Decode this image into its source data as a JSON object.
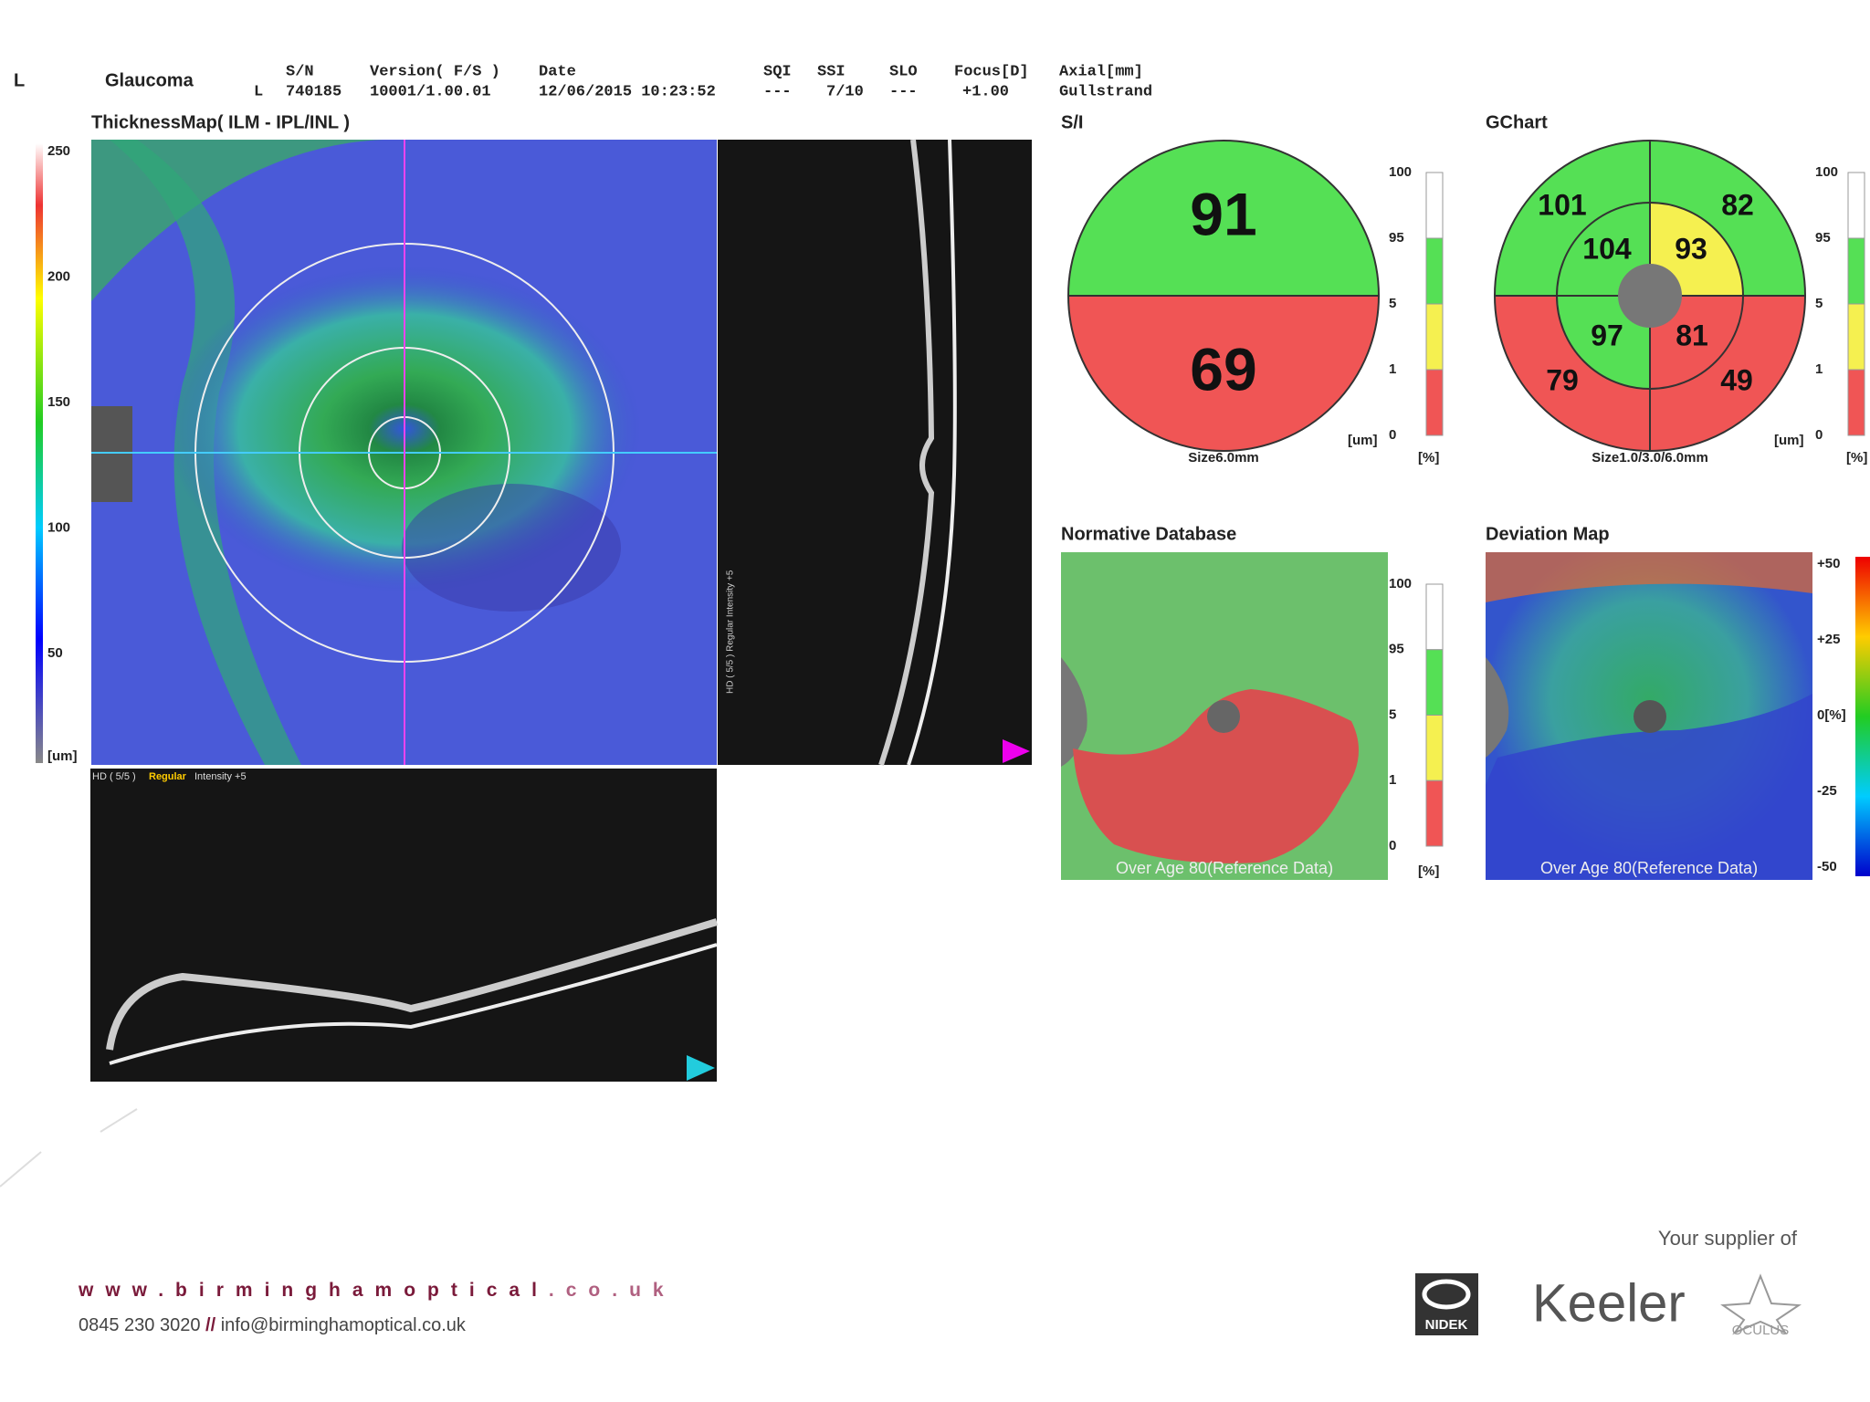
{
  "header": {
    "eye": "L",
    "mode": "Glaucoma",
    "row_eye": "L",
    "columns": [
      {
        "label": "S/N",
        "value": "740185"
      },
      {
        "label": "Version( F/S )",
        "value": "10001/1.00.01"
      },
      {
        "label": "Date",
        "value": "12/06/2015 10:23:52"
      },
      {
        "label": "SQI",
        "value": "---"
      },
      {
        "label": "SSI",
        "value": "7/10"
      },
      {
        "label": "SLO",
        "value": "---"
      },
      {
        "label": "Focus[D]",
        "value": "+1.00"
      },
      {
        "label": "Axial[mm]",
        "value": "Gullstrand"
      }
    ]
  },
  "thickness_map": {
    "title": "ThicknessMap( ILM - IPL/INL )",
    "scale": [
      "250",
      "200",
      "150",
      "100",
      "50"
    ],
    "unit": "[um]"
  },
  "bscan_vertical": {
    "label": "HD ( 5/5 ) Regular Intensity +5"
  },
  "bscan_horizontal": {
    "mode": "HD ( 5/5 )",
    "protocol": "Regular",
    "intensity": "Intensity +5"
  },
  "si": {
    "title": "S/I",
    "superior": 91,
    "inferior": 69,
    "size": "Size6.0mm",
    "unit": "[um]",
    "scale": [
      "100",
      "95",
      "5",
      "1",
      "0"
    ],
    "scale_unit": "[%]"
  },
  "gchart": {
    "title": "GChart",
    "outer_superior_temporal": 101,
    "outer_superior_nasal": 82,
    "inner_superior_temporal": 104,
    "inner_superior_nasal": 93,
    "inner_inferior_temporal": 97,
    "inner_inferior_nasal": 81,
    "outer_inferior_temporal": 79,
    "outer_inferior_nasal": 49,
    "size": "Size1.0/3.0/6.0mm",
    "unit": "[um]",
    "scale": [
      "100",
      "95",
      "5",
      "1",
      "0"
    ],
    "scale_unit": "[%]"
  },
  "normative": {
    "title": "Normative Database",
    "note": "Over Age 80(Reference Data)",
    "scale": [
      "100",
      "95",
      "5",
      "1",
      "0"
    ],
    "scale_unit": "[%]"
  },
  "deviation": {
    "title": "Deviation Map",
    "note": "Over Age 80(Reference Data)",
    "scale": [
      "+50",
      "+25",
      "0[%]",
      "-25",
      "-50"
    ]
  },
  "footer": {
    "web_main": "www.birminghamoptical",
    "web_tld": ".co.uk",
    "phone": "0845 230 3020",
    "separator": "//",
    "email": "info@birminghamoptical.co.uk",
    "supplier": "Your supplier of",
    "brands": [
      "NIDEK",
      "Keeler",
      "OCULUS"
    ]
  }
}
